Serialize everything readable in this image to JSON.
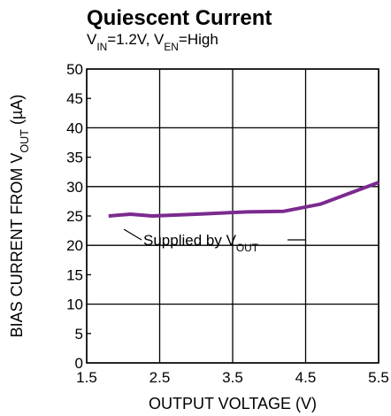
{
  "chart_data": {
    "type": "line",
    "title": "Quiescent Current",
    "subtitle": [
      {
        "text": "V"
      },
      {
        "text": "IN",
        "sub": true
      },
      {
        "text": "=1.2V, V"
      },
      {
        "text": "EN",
        "sub": true
      },
      {
        "text": "=High"
      }
    ],
    "xlabel": "OUTPUT VOLTAGE (V)",
    "ylabel": [
      {
        "text": "BIAS CURRENT FROM V"
      },
      {
        "text": "OUT",
        "sub": true
      },
      {
        "text": " (µA)"
      }
    ],
    "annotation": [
      {
        "text": "Supplied by V"
      },
      {
        "text": "OUT",
        "sub": true
      }
    ],
    "x": [
      1.8,
      2.1,
      2.4,
      3.0,
      3.7,
      4.2,
      4.7,
      5.5
    ],
    "series": [
      {
        "color": "#7b2a8f",
        "values": [
          25,
          25.3,
          25,
          25.3,
          25.7,
          25.8,
          27,
          30.7
        ]
      }
    ],
    "xlim": [
      1.5,
      5.5
    ],
    "xticks": [
      1.5,
      2.5,
      3.5,
      4.5,
      5.5
    ],
    "ylim": [
      0,
      50
    ],
    "yticks": [
      0,
      5,
      10,
      15,
      20,
      25,
      30,
      35,
      40,
      45,
      50
    ],
    "grid": true
  }
}
